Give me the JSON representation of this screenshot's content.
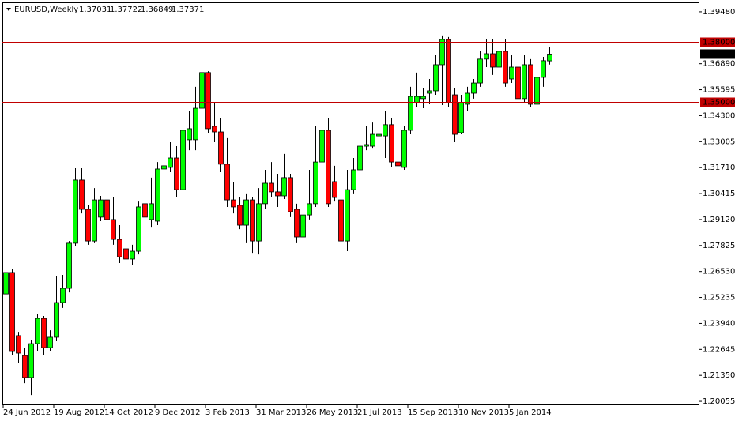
{
  "chart_data": {
    "type": "candlestick",
    "title": "EURUSD,Weekly",
    "categories": [
      "24 Jun 2012",
      null,
      null,
      null,
      null,
      null,
      null,
      null,
      "19 Aug 2012",
      null,
      null,
      null,
      null,
      null,
      null,
      null,
      "14 Oct 2012",
      null,
      null,
      null,
      null,
      null,
      null,
      null,
      "9 Dec 2012",
      null,
      null,
      null,
      null,
      null,
      null,
      null,
      "3 Feb 2013",
      null,
      null,
      null,
      null,
      null,
      null,
      null,
      "31 Mar 2013",
      null,
      null,
      null,
      null,
      null,
      null,
      null,
      "26 May 2013",
      null,
      null,
      null,
      null,
      null,
      null,
      null,
      "21 Jul 2013",
      null,
      null,
      null,
      null,
      null,
      null,
      null,
      "15 Sep 2013",
      null,
      null,
      null,
      null,
      null,
      null,
      null,
      "10 Nov 2013",
      null,
      null,
      null,
      null,
      null,
      null,
      null,
      "5 Jan 2014",
      null,
      null,
      null,
      null,
      null,
      null
    ],
    "open": [
      1.2541,
      1.2648,
      1.2333,
      1.2234,
      1.2124,
      1.2293,
      1.2419,
      1.2273,
      1.2325,
      1.2498,
      1.2569,
      1.2794,
      1.3109,
      1.2963,
      1.2805,
      1.2924,
      1.301,
      1.2912,
      1.2813,
      1.2766,
      1.2715,
      1.2754,
      1.2991,
      1.2912,
      1.2904,
      1.3164,
      1.3172,
      1.3219,
      1.3061,
      1.331,
      1.331,
      1.3467,
      1.3645,
      1.3377,
      1.3349,
      1.3188,
      1.301,
      1.2983,
      1.2884,
      1.301,
      1.2805,
      1.2991,
      1.3093,
      1.305,
      1.303,
      1.3121,
      1.2963,
      1.2825,
      1.2935,
      1.2991,
      1.3199,
      1.3357,
      1.3101,
      1.301,
      1.2805,
      1.3061,
      1.316,
      1.3278,
      1.3278,
      1.3329,
      1.3329,
      1.3385,
      1.3199,
      1.3172,
      1.3357,
      1.3495,
      1.3515,
      1.3542,
      1.3554,
      1.3684,
      1.381,
      1.3534,
      1.3345,
      1.3487,
      1.3542,
      1.3593,
      1.3712,
      1.3739,
      1.3672,
      1.3751,
      1.3613,
      1.3672,
      1.3515,
      1.3684,
      1.3487,
      1.3621,
      1.37031
    ],
    "high": [
      1.2687,
      1.2667,
      1.2352,
      1.2273,
      1.2313,
      1.2439,
      1.2431,
      1.236,
      1.2628,
      1.2636,
      1.2805,
      1.3168,
      1.3168,
      1.2983,
      1.3069,
      1.303,
      1.3128,
      1.3022,
      1.2884,
      1.2825,
      1.2786,
      1.3002,
      1.3042,
      1.3121,
      1.3199,
      1.3298,
      1.3298,
      1.3278,
      1.3436,
      1.3455,
      1.3574,
      1.3712,
      1.3652,
      1.3495,
      1.3416,
      1.3318,
      1.3101,
      1.3022,
      1.3042,
      1.3022,
      1.3069,
      1.316,
      1.3199,
      1.314,
      1.3239,
      1.314,
      1.2991,
      1.3022,
      1.316,
      1.3377,
      1.3396,
      1.3416,
      1.318,
      1.3042,
      1.316,
      1.3219,
      1.3337,
      1.3377,
      1.3396,
      1.3416,
      1.3455,
      1.3416,
      1.3278,
      1.3377,
      1.3574,
      1.3645,
      1.3566,
      1.3613,
      1.3731,
      1.383,
      1.3822,
      1.3566,
      1.3534,
      1.3574,
      1.3613,
      1.3751,
      1.381,
      1.381,
      1.3889,
      1.381,
      1.3731,
      1.3712,
      1.3731,
      1.3712,
      1.3672,
      1.3723,
      1.37722
    ],
    "low": [
      1.2431,
      1.2234,
      1.2195,
      1.2096,
      1.2037,
      1.2254,
      1.2234,
      1.2254,
      1.2305,
      1.2471,
      1.2549,
      1.2778,
      1.2943,
      1.2786,
      1.2794,
      1.2904,
      1.2884,
      1.2786,
      1.2695,
      1.266,
      1.2687,
      1.2738,
      1.2892,
      1.2872,
      1.2884,
      1.314,
      1.3148,
      1.3022,
      1.3042,
      1.3258,
      1.3258,
      1.3455,
      1.3345,
      1.3298,
      1.3148,
      1.2975,
      1.2943,
      1.2864,
      1.2794,
      1.2746,
      1.2738,
      1.2963,
      1.3022,
      1.2975,
      1.3014,
      1.2924,
      1.2794,
      1.2805,
      1.2912,
      1.2975,
      1.318,
      1.2975,
      1.3002,
      1.2786,
      1.2754,
      1.3042,
      1.314,
      1.3258,
      1.3266,
      1.3298,
      1.3219,
      1.3172,
      1.3101,
      1.316,
      1.3337,
      1.3475,
      1.3467,
      1.3487,
      1.3534,
      1.3483,
      1.3475,
      1.3298,
      1.3337,
      1.3455,
      1.3515,
      1.3574,
      1.3672,
      1.3633,
      1.3633,
      1.3574,
      1.3593,
      1.3503,
      1.3495,
      1.3475,
      1.3475,
      1.3574,
      1.36849
    ],
    "close": [
      1.2648,
      1.2254,
      1.2246,
      1.2124,
      1.2293,
      1.2419,
      1.2273,
      1.2325,
      1.2498,
      1.2569,
      1.2794,
      1.3109,
      1.2963,
      1.2805,
      1.301,
      1.301,
      1.2912,
      1.2813,
      1.2726,
      1.2715,
      1.2754,
      1.2975,
      1.2924,
      1.2991,
      1.3164,
      1.318,
      1.3219,
      1.3061,
      1.3357,
      1.3365,
      1.3467,
      1.3645,
      1.3365,
      1.3349,
      1.3188,
      1.301,
      1.2975,
      1.2884,
      1.301,
      1.2805,
      1.2991,
      1.3093,
      1.305,
      1.303,
      1.3121,
      1.2951,
      1.2825,
      1.2935,
      1.2991,
      1.3199,
      1.3357,
      1.2991,
      1.3022,
      1.2805,
      1.3061,
      1.316,
      1.3278,
      1.3286,
      1.3337,
      1.3337,
      1.3385,
      1.3199,
      1.318,
      1.3357,
      1.3526,
      1.3526,
      1.3526,
      1.3554,
      1.3684,
      1.381,
      1.3495,
      1.3337,
      1.3495,
      1.3542,
      1.3593,
      1.3712,
      1.3739,
      1.3672,
      1.3751,
      1.3593,
      1.3672,
      1.3515,
      1.3684,
      1.3487,
      1.3621,
      1.3704,
      1.37371
    ],
    "up_color": "#00ff00",
    "down_color": "#ff0000",
    "line_color": "#c00000",
    "ylim": [
      1.199,
      1.3995
    ],
    "yticks": [
      {
        "value": 1.3948,
        "label": "1.39480"
      },
      {
        "value": 1.3689,
        "label": "1.36890"
      },
      {
        "value": 1.35595,
        "label": "1.35595"
      },
      {
        "value": 1.343,
        "label": "1.34300"
      },
      {
        "value": 1.33005,
        "label": "1.33005"
      },
      {
        "value": 1.3171,
        "label": "1.31710"
      },
      {
        "value": 1.30415,
        "label": "1.30415"
      },
      {
        "value": 1.2912,
        "label": "1.29120"
      },
      {
        "value": 1.27825,
        "label": "1.27825"
      },
      {
        "value": 1.2653,
        "label": "1.26530"
      },
      {
        "value": 1.25235,
        "label": "1.25235"
      },
      {
        "value": 1.2394,
        "label": "1.23940"
      },
      {
        "value": 1.22645,
        "label": "1.22645"
      },
      {
        "value": 1.2135,
        "label": "1.21350"
      },
      {
        "value": 1.20055,
        "label": "1.20055"
      }
    ],
    "hlines": [
      {
        "value": 1.38,
        "label": "1.38000"
      },
      {
        "value": 1.35,
        "label": "1.35000"
      }
    ]
  }
}
